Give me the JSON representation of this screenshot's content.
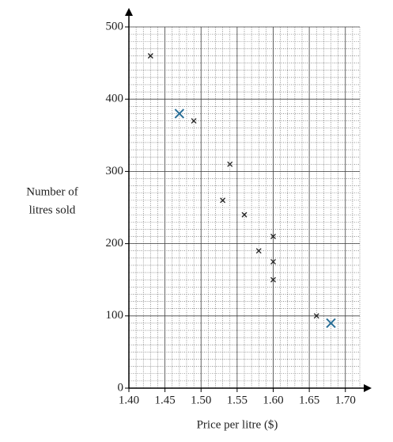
{
  "chart_data": {
    "type": "scatter",
    "xlabel": "Price per litre ($)",
    "ylabel": [
      "Number of",
      "litres sold"
    ],
    "x": [
      1.43,
      1.47,
      1.49,
      1.54,
      1.53,
      1.56,
      1.58,
      1.6,
      1.6,
      1.6,
      1.66,
      1.68
    ],
    "values": [
      460,
      380,
      370,
      310,
      260,
      240,
      190,
      210,
      175,
      150,
      100,
      90
    ],
    "color": "#222222",
    "point_colors": [
      "#222222",
      "#2a6f97",
      "#222222",
      "#222222",
      "#222222",
      "#222222",
      "#222222",
      "#222222",
      "#222222",
      "#222222",
      "#222222",
      "#2a6f97"
    ],
    "xlim": [
      1.4,
      1.72
    ],
    "ylim": [
      0,
      500
    ],
    "xticks": [
      {
        "value": 1.4,
        "label": "1.40"
      },
      {
        "value": 1.45,
        "label": "1.45"
      },
      {
        "value": 1.5,
        "label": "1.50"
      },
      {
        "value": 1.55,
        "label": "1.55"
      },
      {
        "value": 1.6,
        "label": "1.60"
      },
      {
        "value": 1.65,
        "label": "1.65"
      },
      {
        "value": 1.7,
        "label": "1.70"
      }
    ],
    "yticks": [
      0,
      100,
      200,
      300,
      400,
      500
    ],
    "grid": true
  }
}
